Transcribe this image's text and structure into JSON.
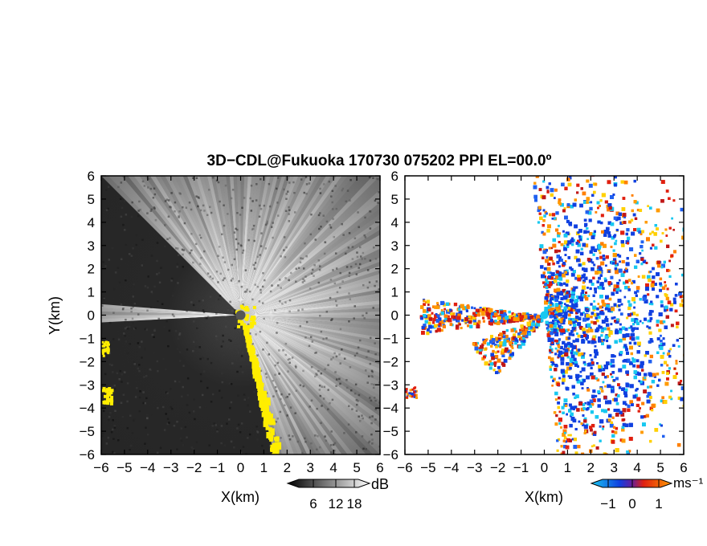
{
  "title": "3D−CDL@Fukuoka 170730 075202 PPI EL=00.0º",
  "chart_data": [
    {
      "type": "heatmap",
      "name": "left-panel",
      "xlabel": "X(km)",
      "ylabel": "Y(km)",
      "xlim": [
        -6,
        6
      ],
      "ylim": [
        -6,
        6
      ],
      "xticks": [
        "−6",
        "−5",
        "−4",
        "−3",
        "−2",
        "−1",
        "0",
        "1",
        "2",
        "3",
        "4",
        "5",
        "6"
      ],
      "yticks": [
        "6",
        "5",
        "4",
        "3",
        "2",
        "1",
        "0",
        "−1",
        "−2",
        "−3",
        "−4",
        "−5",
        "−6"
      ],
      "colorbar": {
        "unit": "dB",
        "ticks": [
          "6",
          "12",
          "18"
        ],
        "colors": [
          "#000000",
          "#ffffff"
        ]
      },
      "highlight_color": "#ffee00",
      "dark_sectors_deg": [
        [
          135,
          175
        ],
        [
          183,
          282
        ]
      ]
    },
    {
      "type": "heatmap",
      "name": "right-panel",
      "xlabel": "X(km)",
      "xlim": [
        -6,
        6
      ],
      "ylim": [
        -6,
        6
      ],
      "xticks": [
        "−6",
        "−5",
        "−4",
        "−3",
        "−2",
        "−1",
        "0",
        "1",
        "2",
        "3",
        "4",
        "5",
        "6"
      ],
      "yticks": [
        "6",
        "5",
        "4",
        "3",
        "2",
        "1",
        "0",
        "−1",
        "−2",
        "−3",
        "−4",
        "−5",
        "−6"
      ],
      "colorbar": {
        "unit": "ms⁻¹",
        "ticks": [
          "−1",
          "0",
          "1"
        ],
        "colors": [
          "#18c8f0",
          "#1040e0",
          "#e02010",
          "#ff9a00"
        ]
      }
    }
  ]
}
